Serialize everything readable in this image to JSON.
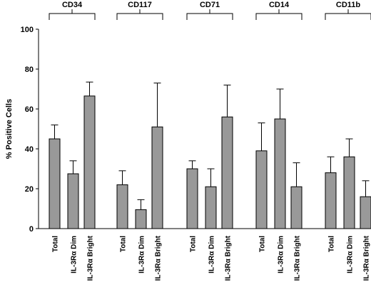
{
  "chart_data": {
    "type": "bar",
    "title": "",
    "xlabel": "",
    "ylabel": "% Positive Cells",
    "ylim": [
      0,
      100
    ],
    "yticks": [
      0,
      20,
      40,
      60,
      80,
      100
    ],
    "grid": false,
    "bar_color": "#999999",
    "groups": [
      {
        "name": "CD34",
        "categories": [
          "Total",
          "IL-3Rα Dim",
          "IL-3Rα Bright"
        ],
        "values": [
          45,
          27.5,
          66.5
        ],
        "errors": [
          7,
          6.5,
          7
        ]
      },
      {
        "name": "CD117",
        "categories": [
          "Total",
          "IL-3Rα Dim",
          "IL-3Rα Bright"
        ],
        "values": [
          22,
          9.5,
          51
        ],
        "errors": [
          7,
          5,
          22
        ]
      },
      {
        "name": "CD71",
        "categories": [
          "Total",
          "IL-3Rα Dim",
          "IL-3Rα Bright"
        ],
        "values": [
          30,
          21,
          56
        ],
        "errors": [
          4,
          9,
          16
        ]
      },
      {
        "name": "CD14",
        "categories": [
          "Total",
          "IL-3Rα Dim",
          "IL-3Rα Bright"
        ],
        "values": [
          39,
          55,
          21
        ],
        "errors": [
          14,
          15,
          12
        ]
      },
      {
        "name": "CD11b",
        "categories": [
          "Total",
          "IL-3Rα Dim",
          "IL-3Rα Bright"
        ],
        "values": [
          28,
          36,
          16
        ],
        "errors": [
          8,
          9,
          8
        ]
      }
    ]
  }
}
